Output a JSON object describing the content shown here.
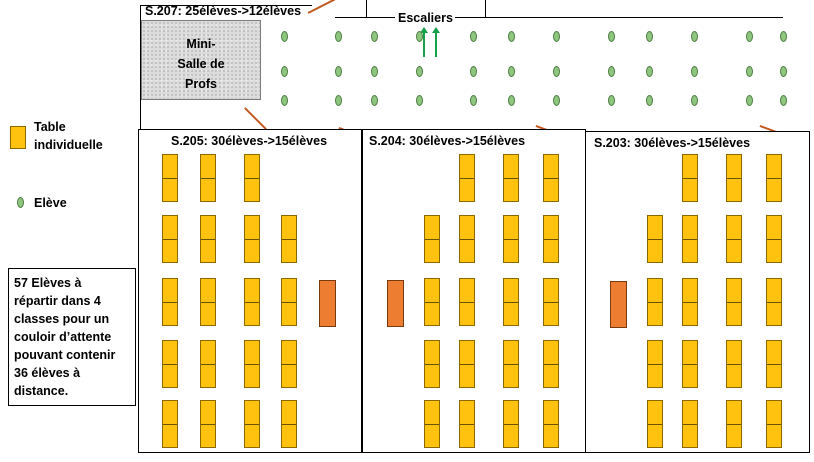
{
  "corridor": {
    "room_title": "S.207: 25élèves->12élèves",
    "stairs_label": "Escaliers",
    "mini_salle_label": "Mini-\nSalle de\nProfs"
  },
  "legend": {
    "desk_label": "Table\nindividuelle",
    "student_label": "Elève"
  },
  "note": {
    "text": "57 Elèves à\nrépartir dans 4\nclasses pour un\ncouloir d’attente\npouvant contenir\n36 élèves à\ndistance."
  },
  "rooms": [
    {
      "title": "S.205: 30élèves->15élèves"
    },
    {
      "title": "S.204: 30élèves->15élèves"
    },
    {
      "title": "S.203: 30élèves->15élèves"
    }
  ],
  "colors": {
    "desk": "#ffc20e",
    "teacher_desk": "#ed7d31",
    "student": "#8fc67f",
    "stairs_arrow": "#15a049",
    "door_swing": "#c05a20"
  },
  "icons": {
    "desk": "desk-icon",
    "student": "student-icon",
    "teacher_desk": "teacher-desk-icon",
    "stairs_arrow": "up-arrow-icon"
  }
}
